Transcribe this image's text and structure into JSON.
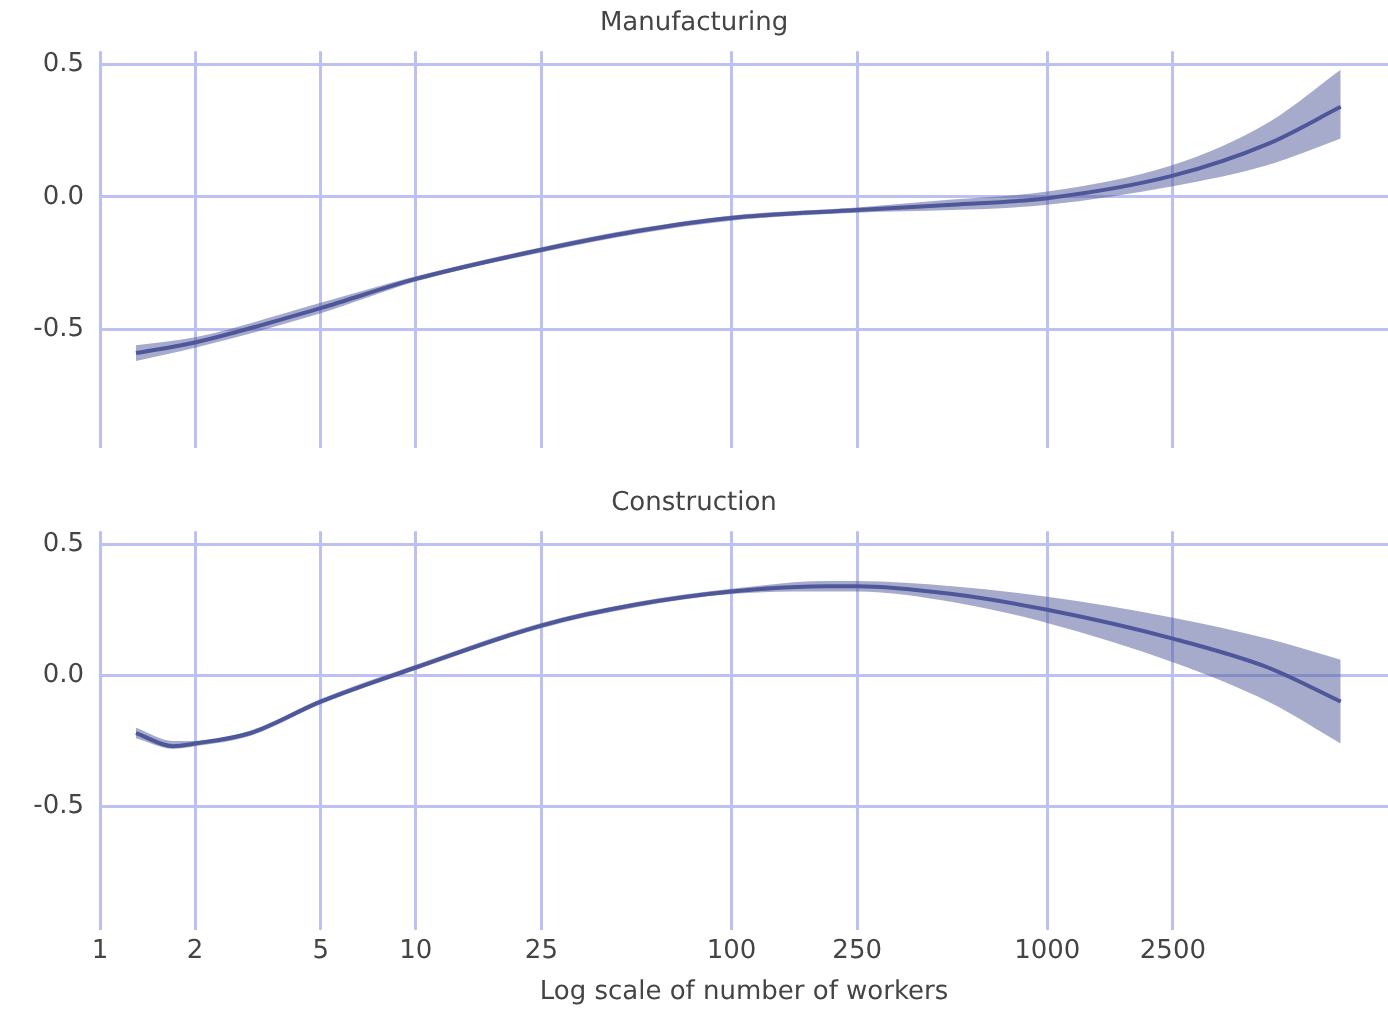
{
  "chart_data": [
    {
      "type": "line",
      "title": "Manufacturing",
      "x": [
        1.3,
        2,
        5,
        10,
        25,
        50,
        100,
        250,
        500,
        1000,
        2500,
        5000,
        8500
      ],
      "xlim": [
        1,
        12000
      ],
      "xticks": [
        1,
        2,
        5,
        10,
        25,
        100,
        250,
        1000,
        2500
      ],
      "log": "x",
      "ylim": [
        -0.95,
        0.55
      ],
      "yticks": [
        {
          "value": -0.5,
          "label": "-0.5"
        },
        {
          "value": 0,
          "label": "0.0"
        },
        {
          "value": 0.5,
          "label": "0.5"
        }
      ],
      "grid": true,
      "legend": false,
      "tick_labels": "y",
      "series": [
        {
          "color": "#4d5799",
          "values": [
            -0.59,
            -0.55,
            -0.42,
            -0.31,
            -0.2,
            -0.13,
            -0.08,
            -0.05,
            -0.03,
            -0.005,
            0.08,
            0.2,
            0.34
          ],
          "lower": [
            -0.62,
            -0.57,
            -0.44,
            -0.32,
            -0.21,
            -0.14,
            -0.09,
            -0.06,
            -0.05,
            -0.03,
            0.04,
            0.12,
            0.22
          ],
          "upper": [
            -0.56,
            -0.53,
            -0.4,
            -0.3,
            -0.19,
            -0.12,
            -0.07,
            -0.04,
            -0.01,
            0.02,
            0.12,
            0.28,
            0.48
          ]
        }
      ]
    },
    {
      "type": "line",
      "title": "Construction",
      "xlabel": "Log scale of number of workers",
      "x": [
        1.3,
        1.7,
        2,
        3,
        5,
        10,
        25,
        50,
        100,
        200,
        250,
        500,
        1000,
        2500,
        5000,
        8500
      ],
      "xlim": [
        1,
        12000
      ],
      "xticks": [
        1,
        2,
        5,
        10,
        25,
        100,
        250,
        1000,
        2500
      ],
      "log": "x",
      "ylim": [
        -0.97,
        0.55
      ],
      "yticks": [
        {
          "value": -0.5,
          "label": "-0.5"
        },
        {
          "value": 0,
          "label": "0.0"
        },
        {
          "value": 0.5,
          "label": "0.5"
        }
      ],
      "grid": true,
      "legend": false,
      "series": [
        {
          "color": "#4d5799",
          "values": [
            -0.22,
            -0.27,
            -0.26,
            -0.22,
            -0.1,
            0.03,
            0.19,
            0.27,
            0.32,
            0.34,
            0.34,
            0.31,
            0.25,
            0.14,
            0.03,
            -0.1
          ],
          "lower": [
            -0.24,
            -0.28,
            -0.27,
            -0.23,
            -0.11,
            0.02,
            0.18,
            0.26,
            0.31,
            0.32,
            0.32,
            0.28,
            0.2,
            0.05,
            -0.1,
            -0.26
          ],
          "upper": [
            -0.2,
            -0.25,
            -0.25,
            -0.21,
            -0.09,
            0.04,
            0.2,
            0.28,
            0.33,
            0.36,
            0.36,
            0.34,
            0.3,
            0.22,
            0.14,
            0.06
          ]
        }
      ]
    }
  ]
}
